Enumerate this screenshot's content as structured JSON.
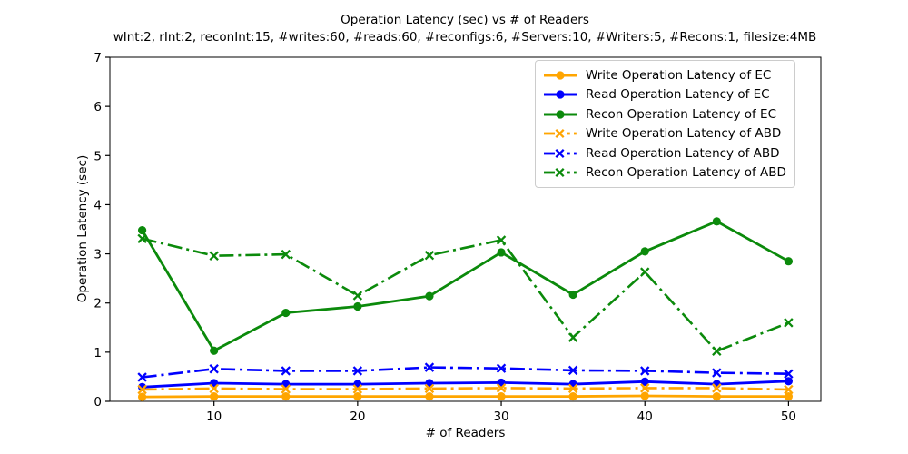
{
  "chart_data": {
    "type": "line",
    "title": "Operation Latency (sec) vs # of Readers",
    "subtitle": "wInt:2, rInt:2, reconInt:15, #writes:60, #reads:60, #reconfigs:6, #Servers:10, #Writers:5, #Recons:1, filesize:4MB",
    "xlabel": "# of Readers",
    "ylabel": "Operation Latency (sec)",
    "x": [
      5,
      10,
      15,
      20,
      25,
      30,
      35,
      40,
      45,
      50
    ],
    "xlim": [
      2.75,
      52.25
    ],
    "ylim": [
      0,
      7
    ],
    "xticks": [
      10,
      20,
      30,
      40,
      50
    ],
    "yticks": [
      0,
      1,
      2,
      3,
      4,
      5,
      6,
      7
    ],
    "grid": false,
    "legend_position": "upper right",
    "colors": {
      "orange": "#FFA500",
      "blue": "#0000FF",
      "green": "#0B8A0B",
      "axis": "#000000",
      "legend_border": "#cccccc"
    },
    "series": [
      {
        "name": "Write Operation Latency of EC",
        "color": "#FFA500",
        "linestyle": "solid",
        "marker": "circle",
        "values": [
          0.09,
          0.1,
          0.1,
          0.1,
          0.1,
          0.1,
          0.1,
          0.11,
          0.1,
          0.1
        ]
      },
      {
        "name": "Read Operation Latency of EC",
        "color": "#0000FF",
        "linestyle": "solid",
        "marker": "circle",
        "values": [
          0.29,
          0.37,
          0.35,
          0.35,
          0.37,
          0.38,
          0.35,
          0.4,
          0.35,
          0.41
        ]
      },
      {
        "name": "Recon Operation Latency of EC",
        "color": "#0B8A0B",
        "linestyle": "solid",
        "marker": "circle",
        "values": [
          3.48,
          1.03,
          1.8,
          1.93,
          2.14,
          3.03,
          2.17,
          3.05,
          3.66,
          2.85
        ]
      },
      {
        "name": "Write Operation Latency of ABD",
        "color": "#FFA500",
        "linestyle": "dashdot",
        "marker": "x",
        "values": [
          0.24,
          0.26,
          0.25,
          0.25,
          0.26,
          0.27,
          0.26,
          0.27,
          0.27,
          0.24
        ]
      },
      {
        "name": "Read Operation Latency of ABD",
        "color": "#0000FF",
        "linestyle": "dashdot",
        "marker": "x",
        "values": [
          0.49,
          0.66,
          0.62,
          0.62,
          0.69,
          0.67,
          0.63,
          0.62,
          0.58,
          0.56
        ]
      },
      {
        "name": "Recon Operation Latency of ABD",
        "color": "#0B8A0B",
        "linestyle": "dashdot",
        "marker": "x",
        "values": [
          3.31,
          2.96,
          2.99,
          2.15,
          2.97,
          3.28,
          1.3,
          2.63,
          1.02,
          1.6
        ]
      }
    ]
  }
}
